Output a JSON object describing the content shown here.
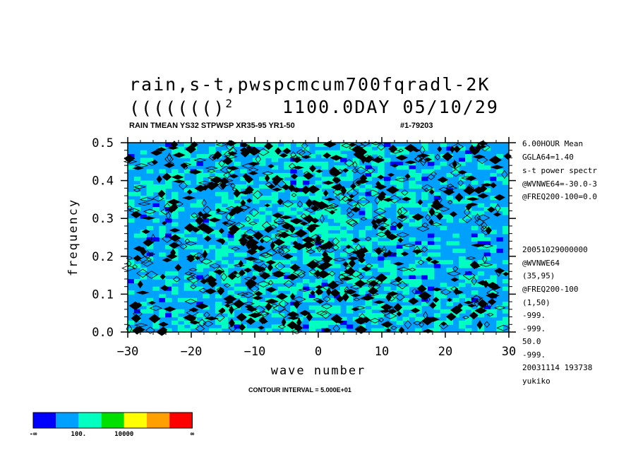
{
  "title": {
    "line1": "rain,s-t,pwspcmcum700fqradl-2K",
    "line2_left": "((((((()",
    "line2_sup": "2",
    "line2_right": "1100.0DAY 05/10/29"
  },
  "subtitle_left": "RAIN TMEAN YS32 STPWSP XR35-95 YR1-50",
  "subtitle_right": "#1-79203",
  "side_info": [
    "6.00HOUR Mean",
    "GGLA64=1.40",
    "s-t power spectr",
    "@WVNWE64=-30.0-3",
    "@FREQ200-100=0.0",
    "20051029000000",
    "@WVNWE64",
    "(35,95)",
    "@FREQ200-100",
    "(1,50)",
    "-999.",
    "-999.",
    "50.0",
    "-999.",
    "20031114 193738",
    "yukiko"
  ],
  "contour_interval": "CONTOUR INTERVAL = 5.000E+01",
  "colorbar": {
    "colors": [
      "#0000ff",
      "#00a0ff",
      "#00ffc0",
      "#00e000",
      "#ffff00",
      "#ffa000",
      "#ff0000"
    ],
    "labels": [
      "-∞",
      "100.",
      "10000",
      "∞"
    ]
  },
  "chart_data": {
    "type": "heatmap",
    "title": "rain,s-t,pwspcmcum700fqradl-2K",
    "xlabel": "wave number",
    "ylabel": "frequency",
    "xlim": [
      -30,
      30
    ],
    "ylim": [
      0.0,
      0.5
    ],
    "x_ticks": [
      -30,
      -20,
      -10,
      0,
      10,
      20,
      30
    ],
    "x_tick_labels": [
      "−30",
      "−20",
      "−10",
      "0",
      "10",
      "20",
      "30"
    ],
    "y_ticks": [
      0.0,
      0.1,
      0.2,
      0.3,
      0.4,
      0.5
    ],
    "y_tick_labels": [
      "0.0",
      "0.1",
      "0.2",
      "0.3",
      "0.4",
      "0.5"
    ],
    "shading_levels": [
      "-∞",
      "1",
      "100.",
      "1000",
      "10000",
      "100000",
      "∞"
    ],
    "contour_interval": 50,
    "colors": [
      "#0000ff",
      "#00a0ff",
      "#00ffc0",
      "#00e000",
      "#ffff00",
      "#ffa000",
      "#ff0000"
    ]
  }
}
